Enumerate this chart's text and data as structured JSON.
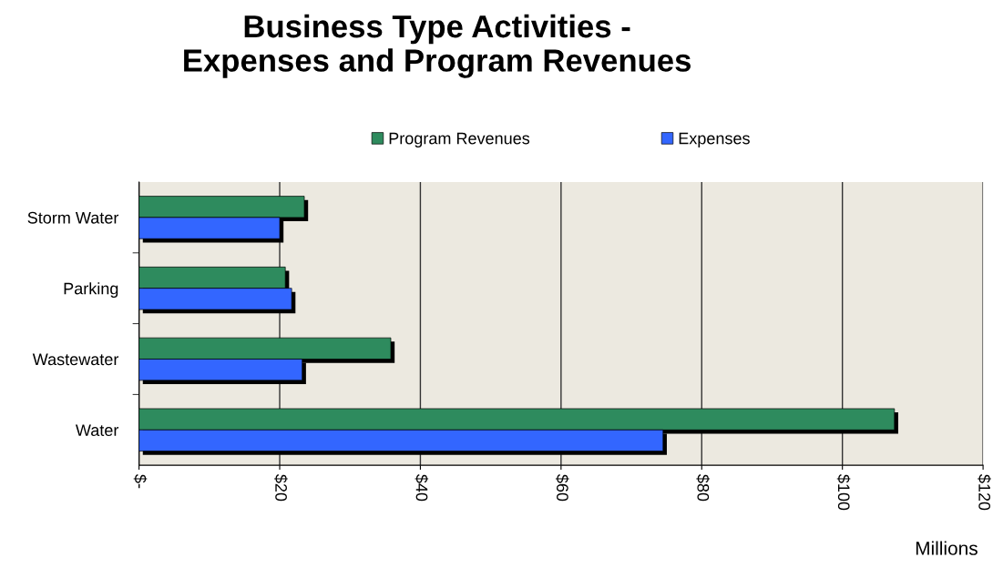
{
  "chart_data": {
    "type": "bar",
    "orientation": "horizontal",
    "title": "Business Type Activities -\nExpenses and Program Revenues",
    "categories": [
      "Storm Water",
      "Parking",
      "Wastewater",
      "Water"
    ],
    "series": [
      {
        "name": "Program Revenues",
        "color": "#2e8b5e",
        "values": [
          23.5,
          20.8,
          35.8,
          107.4
        ]
      },
      {
        "name": "Expenses",
        "color": "#3366ff",
        "values": [
          20.0,
          21.7,
          23.2,
          74.5
        ]
      }
    ],
    "xlabel": "Millions",
    "xlim": [
      0,
      120
    ],
    "xticks": [
      {
        "value": 0,
        "label": "$-"
      },
      {
        "value": 20,
        "label": "$20"
      },
      {
        "value": 40,
        "label": "$40"
      },
      {
        "value": 60,
        "label": "$60"
      },
      {
        "value": 80,
        "label": "$80"
      },
      {
        "value": 100,
        "label": "$100"
      },
      {
        "value": 120,
        "label": "$120"
      }
    ],
    "grid": "x",
    "legend": "top"
  }
}
